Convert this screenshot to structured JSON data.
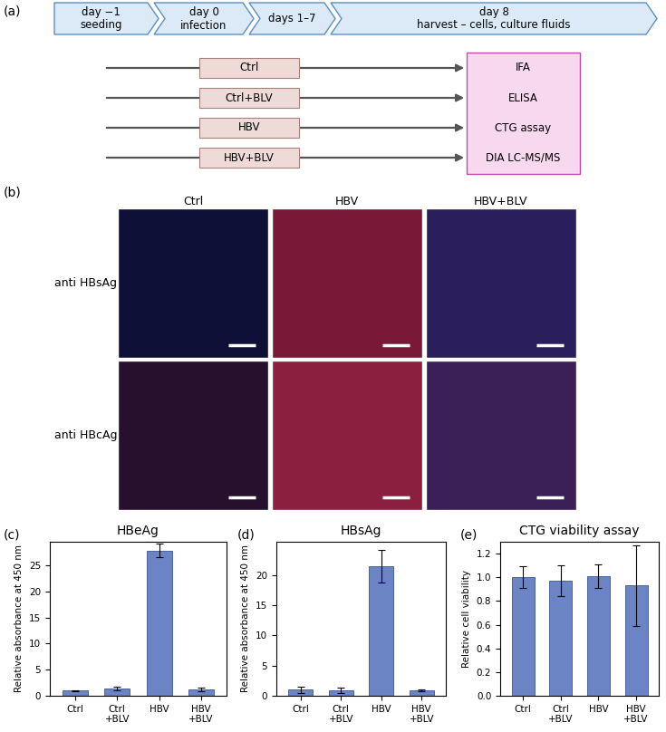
{
  "panel_labels": [
    "(a)",
    "(b)",
    "(c)",
    "(d)",
    "(e)"
  ],
  "diagram": {
    "timeline": [
      "day −1\nseeding",
      "day 0\ninfection",
      "days 1–7",
      "day 8\nharvest – cells, culture fluids"
    ],
    "conditions": [
      "Ctrl",
      "Ctrl+BLV",
      "HBV",
      "HBV+BLV"
    ],
    "assays": [
      "IFA",
      "ELISA",
      "CTG assay",
      "DIA LC-MS/MS"
    ]
  },
  "images": {
    "columns": [
      "Ctrl",
      "HBV",
      "HBV+BLV"
    ],
    "rows": [
      "anti HBsAg",
      "anti HBcAg"
    ]
  },
  "chart_data": [
    {
      "type": "bar",
      "title": "HBeAg",
      "ylabel": "Relative absorbance at 450 nm",
      "categories": [
        "Ctrl",
        "Ctrl\n+BLV",
        "HBV",
        "HBV\n+BLV"
      ],
      "values": [
        1.0,
        1.4,
        27.8,
        1.2
      ],
      "errors": [
        0.1,
        0.3,
        1.3,
        0.3
      ],
      "color": "#6a84c4",
      "ylim": [
        0,
        29.5
      ],
      "yticks": [
        0,
        5,
        10,
        15,
        20,
        25
      ]
    },
    {
      "type": "bar",
      "title": "HBsAg",
      "ylabel": "Relative absorbance at 450 nm",
      "categories": [
        "Ctrl",
        "Ctrl\n+BLV",
        "HBV",
        "HBV\n+BLV"
      ],
      "values": [
        1.0,
        0.9,
        21.5,
        0.9
      ],
      "errors": [
        0.5,
        0.4,
        2.7,
        0.2
      ],
      "color": "#6a84c4",
      "ylim": [
        0,
        25.5
      ],
      "yticks": [
        0,
        5,
        10,
        15,
        20
      ]
    },
    {
      "type": "bar",
      "title": "CTG viability assay",
      "ylabel": "Relative cell viability",
      "categories": [
        "Ctrl",
        "Ctrl\n+BLV",
        "HBV",
        "HBV\n+BLV"
      ],
      "values": [
        1.0,
        0.97,
        1.01,
        0.93
      ],
      "errors": [
        0.09,
        0.13,
        0.1,
        0.34
      ],
      "color": "#6a84c4",
      "ylim": [
        0,
        1.3
      ],
      "yticks": [
        {
          "value": 0,
          "label": "0.0"
        },
        0.2,
        0.4,
        0.6,
        0.8,
        {
          "value": 1,
          "label": "1.0"
        },
        1.2
      ]
    }
  ]
}
